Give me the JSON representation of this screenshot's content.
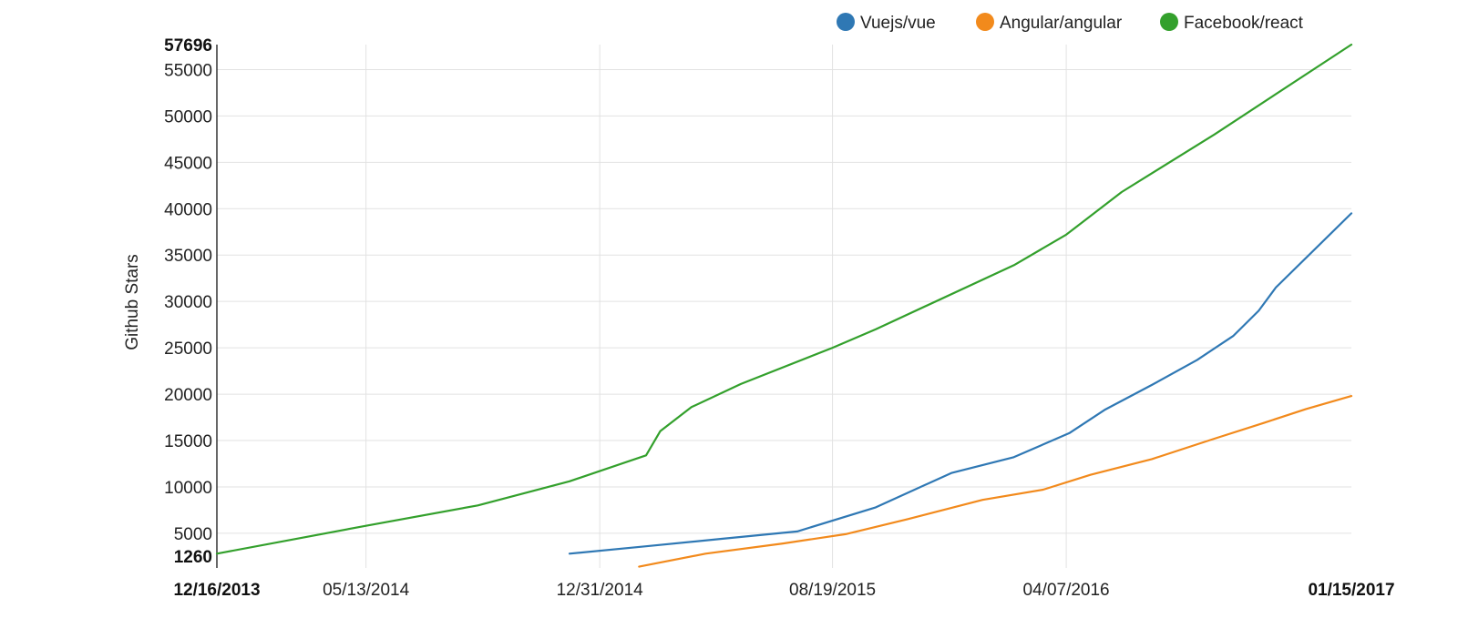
{
  "chart_data": {
    "type": "line",
    "title": "",
    "xlabel": "",
    "ylabel": "Github Stars",
    "x_axis": {
      "type": "date",
      "range": [
        "2013-12-16",
        "2017-01-15"
      ],
      "ticks": [
        {
          "date": "2013-12-16",
          "label": "12/16/2013",
          "bold": true
        },
        {
          "date": "2014-05-13",
          "label": "05/13/2014",
          "bold": false
        },
        {
          "date": "2014-12-31",
          "label": "12/31/2014",
          "bold": false
        },
        {
          "date": "2015-08-19",
          "label": "08/19/2015",
          "bold": false
        },
        {
          "date": "2016-04-07",
          "label": "04/07/2016",
          "bold": false
        },
        {
          "date": "2017-01-15",
          "label": "01/15/2017",
          "bold": true
        }
      ]
    },
    "y_axis": {
      "range": [
        1260,
        57696
      ],
      "ticks": [
        {
          "value": 1260,
          "label": "1260",
          "bold": true
        },
        {
          "value": 5000,
          "label": "5000",
          "bold": false
        },
        {
          "value": 10000,
          "label": "10000",
          "bold": false
        },
        {
          "value": 15000,
          "label": "15000",
          "bold": false
        },
        {
          "value": 20000,
          "label": "20000",
          "bold": false
        },
        {
          "value": 25000,
          "label": "25000",
          "bold": false
        },
        {
          "value": 30000,
          "label": "30000",
          "bold": false
        },
        {
          "value": 35000,
          "label": "35000",
          "bold": false
        },
        {
          "value": 40000,
          "label": "40000",
          "bold": false
        },
        {
          "value": 45000,
          "label": "45000",
          "bold": false
        },
        {
          "value": 50000,
          "label": "50000",
          "bold": false
        },
        {
          "value": 55000,
          "label": "55000",
          "bold": false
        },
        {
          "value": 57696,
          "label": "57696",
          "bold": true
        }
      ]
    },
    "grid": true,
    "legend_position": "top-right",
    "series": [
      {
        "name": "Vuejs/vue",
        "color": "#2f78b4",
        "points": [
          {
            "x": "2014-12-01",
            "y": 2800
          },
          {
            "x": "2015-02-15",
            "y": 3600
          },
          {
            "x": "2015-05-01",
            "y": 4400
          },
          {
            "x": "2015-07-15",
            "y": 5200
          },
          {
            "x": "2015-10-01",
            "y": 7800
          },
          {
            "x": "2015-12-15",
            "y": 11500
          },
          {
            "x": "2016-02-15",
            "y": 13200
          },
          {
            "x": "2016-04-10",
            "y": 15800
          },
          {
            "x": "2016-05-15",
            "y": 18300
          },
          {
            "x": "2016-07-01",
            "y": 21000
          },
          {
            "x": "2016-08-15",
            "y": 23700
          },
          {
            "x": "2016-09-20",
            "y": 26300
          },
          {
            "x": "2016-10-15",
            "y": 29000
          },
          {
            "x": "2016-11-01",
            "y": 31500
          },
          {
            "x": "2017-01-15",
            "y": 39500
          }
        ]
      },
      {
        "name": "Angular/angular",
        "color": "#f28a1c",
        "points": [
          {
            "x": "2015-02-08",
            "y": 1400
          },
          {
            "x": "2015-04-15",
            "y": 2800
          },
          {
            "x": "2015-07-01",
            "y": 3900
          },
          {
            "x": "2015-09-01",
            "y": 4900
          },
          {
            "x": "2015-11-01",
            "y": 6500
          },
          {
            "x": "2016-01-15",
            "y": 8600
          },
          {
            "x": "2016-03-15",
            "y": 9700
          },
          {
            "x": "2016-05-01",
            "y": 11300
          },
          {
            "x": "2016-07-01",
            "y": 13000
          },
          {
            "x": "2016-09-01",
            "y": 15200
          },
          {
            "x": "2016-10-20",
            "y": 16900
          },
          {
            "x": "2016-12-01",
            "y": 18400
          },
          {
            "x": "2017-01-15",
            "y": 19800
          }
        ]
      },
      {
        "name": "Facebook/react",
        "color": "#33a02c",
        "points": [
          {
            "x": "2013-12-16",
            "y": 2800
          },
          {
            "x": "2014-05-13",
            "y": 5800
          },
          {
            "x": "2014-09-01",
            "y": 8000
          },
          {
            "x": "2014-12-01",
            "y": 10600
          },
          {
            "x": "2015-02-15",
            "y": 13400
          },
          {
            "x": "2015-03-01",
            "y": 16000
          },
          {
            "x": "2015-04-01",
            "y": 18600
          },
          {
            "x": "2015-05-20",
            "y": 21100
          },
          {
            "x": "2015-08-19",
            "y": 25000
          },
          {
            "x": "2015-10-01",
            "y": 27000
          },
          {
            "x": "2016-02-15",
            "y": 33900
          },
          {
            "x": "2016-04-07",
            "y": 37200
          },
          {
            "x": "2016-06-01",
            "y": 41800
          },
          {
            "x": "2016-09-01",
            "y": 48000
          },
          {
            "x": "2017-01-15",
            "y": 57696
          }
        ]
      }
    ]
  }
}
